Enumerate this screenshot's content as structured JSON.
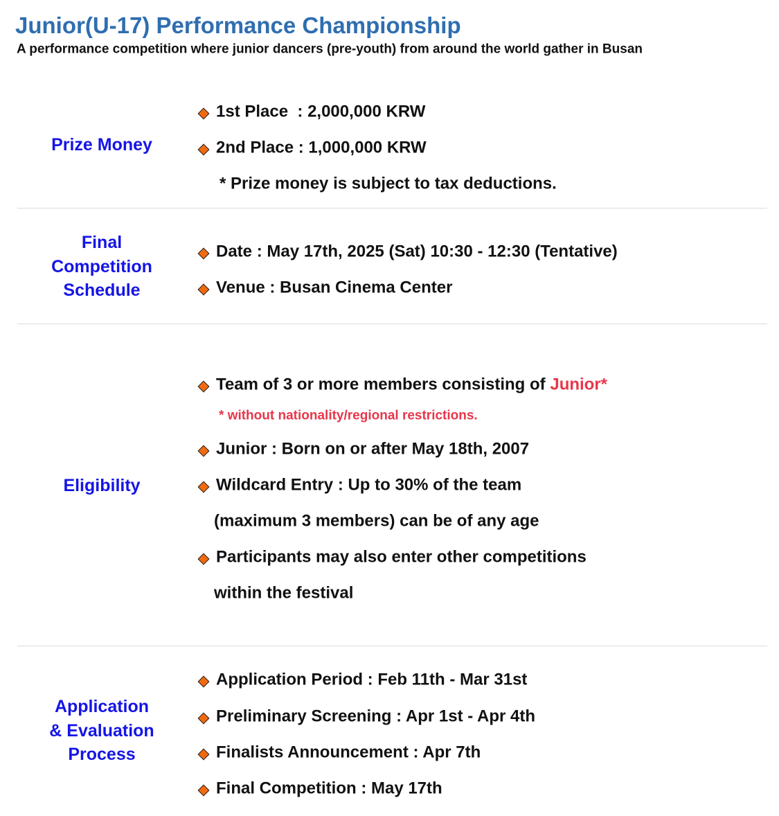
{
  "header": {
    "title": "Junior(U-17) Performance Championship",
    "subtitle": "A performance competition where junior dancers (pre-youth) from around the world gather in Busan"
  },
  "sections": [
    {
      "label": [
        "Prize Money"
      ],
      "items": [
        {
          "lines": [
            "1st Place  : 2,000,000 KRW"
          ]
        },
        {
          "lines": [
            "2nd Place : 1,000,000 KRW"
          ]
        }
      ],
      "note": "* Prize money is subject to tax deductions."
    },
    {
      "label": [
        "Final",
        "Competition",
        "Schedule"
      ],
      "items": [
        {
          "lines": [
            "Date : May 17th, 2025 (Sat) 10:30 - 12:30 (Tentative)"
          ]
        },
        {
          "lines": [
            "Venue : Busan Cinema Center"
          ]
        }
      ]
    },
    {
      "label": [
        "Eligibility"
      ],
      "items": [
        {
          "lines": [
            "Team of 3 or more members consisting of "
          ],
          "highlight": "Junior*",
          "note": "* without nationality/regional restrictions."
        },
        {
          "lines": [
            "Junior : Born on or after May 18th, 2007"
          ]
        },
        {
          "lines": [
            "Wildcard Entry : Up to 30% of the team",
            "(maximum 3 members) can be of any age"
          ]
        },
        {
          "lines": [
            "Participants may also enter other competitions",
            "within the festival"
          ]
        }
      ]
    },
    {
      "label": [
        "Application",
        "& Evaluation",
        "Process"
      ],
      "items": [
        {
          "lines": [
            "Application Period : Feb 11th - Mar 31st"
          ]
        },
        {
          "lines": [
            "Preliminary Screening : Apr 1st - Apr 4th"
          ]
        },
        {
          "lines": [
            "Finalists Announcement : Apr 7th"
          ]
        },
        {
          "lines": [
            "Final Competition : May 17th"
          ]
        }
      ]
    }
  ]
}
